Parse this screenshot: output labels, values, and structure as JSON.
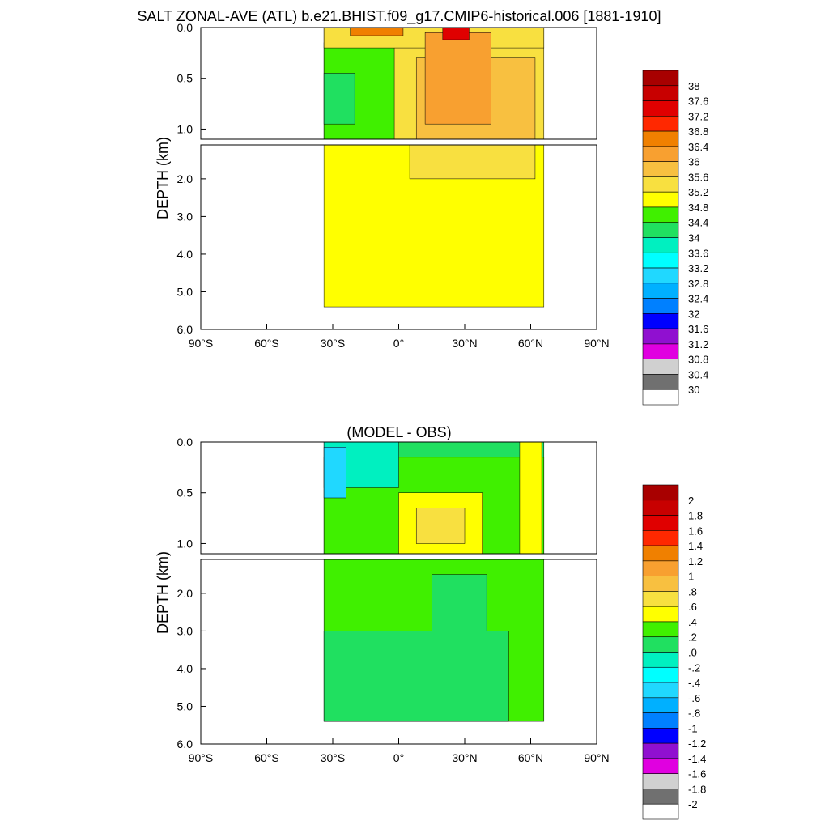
{
  "figure_title": "SALT ZONAL-AVE (ATL) b.e21.BHIST.f09_g17.CMIP6-historical.006 [1881-1910]",
  "chart_data": [
    {
      "type": "heatmap",
      "title": "",
      "ylabel": "DEPTH (km)",
      "xlabel": "",
      "x_ticks": [
        "90°S",
        "60°S",
        "30°S",
        "0°",
        "30°N",
        "60°N",
        "90°N"
      ],
      "x_range": [
        -90,
        90
      ],
      "upper_y_ticks": [
        "0.0",
        "0.5",
        "1.0"
      ],
      "upper_y_range_km": [
        0,
        1.1
      ],
      "lower_y_ticks": [
        "2.0",
        "3.0",
        "4.0",
        "5.0",
        "6.0"
      ],
      "lower_y_range_km": [
        1.1,
        6.0
      ],
      "colorbar_labels": [
        "38",
        "37.6",
        "37.2",
        "36.8",
        "36.4",
        "36",
        "35.6",
        "35.2",
        "34.8",
        "34.4",
        "34",
        "33.6",
        "33.2",
        "32.8",
        "32.4",
        "32",
        "31.6",
        "31.2",
        "30.8",
        "30.4",
        "30"
      ],
      "colorbar_colors": [
        "#a80000",
        "#c80000",
        "#e00000",
        "#ff2800",
        "#f08000",
        "#f8a030",
        "#f8c040",
        "#f8e040",
        "#ffff00",
        "#40f000",
        "#20e060",
        "#00f0c0",
        "#00ffff",
        "#20d8ff",
        "#00b0ff",
        "#0080ff",
        "#0000ff",
        "#9010d0",
        "#e000e0",
        "#d0d0d0",
        "#707070",
        "#ffffff"
      ],
      "regions": {
        "upper": [
          {
            "value": 35.2,
            "lat": [
              -34,
              66
            ],
            "depth": [
              0.0,
              1.1
            ]
          },
          {
            "value": 34.6,
            "lat": [
              -34,
              -2
            ],
            "depth": [
              0.15,
              1.1
            ]
          },
          {
            "value": 34.2,
            "lat": [
              -34,
              -20
            ],
            "depth": [
              0.45,
              0.95
            ]
          },
          {
            "value": 35.4,
            "lat": [
              -34,
              66
            ],
            "depth": [
              0.0,
              0.2
            ]
          },
          {
            "value": 35.6,
            "lat": [
              8,
              62
            ],
            "depth": [
              0.3,
              1.1
            ]
          },
          {
            "value": 36.0,
            "lat": [
              12,
              42
            ],
            "depth": [
              0.05,
              0.95
            ]
          },
          {
            "value": 36.6,
            "lat": [
              -22,
              2
            ],
            "depth": [
              0.0,
              0.08
            ]
          },
          {
            "value": 37.2,
            "lat": [
              20,
              32
            ],
            "depth": [
              0.0,
              0.12
            ]
          }
        ],
        "lower": [
          {
            "value": 35.0,
            "lat": [
              -34,
              66
            ],
            "depth": [
              1.1,
              5.4
            ]
          },
          {
            "value": 35.4,
            "lat": [
              5,
              62
            ],
            "depth": [
              1.1,
              2.0
            ]
          }
        ]
      }
    },
    {
      "type": "heatmap",
      "title": "(MODEL - OBS)",
      "ylabel": "DEPTH (km)",
      "xlabel": "",
      "x_ticks": [
        "90°S",
        "60°S",
        "30°S",
        "0°",
        "30°N",
        "60°N",
        "90°N"
      ],
      "x_range": [
        -90,
        90
      ],
      "upper_y_ticks": [
        "0.0",
        "0.5",
        "1.0"
      ],
      "upper_y_range_km": [
        0,
        1.1
      ],
      "lower_y_ticks": [
        "2.0",
        "3.0",
        "4.0",
        "5.0",
        "6.0"
      ],
      "lower_y_range_km": [
        1.1,
        6.0
      ],
      "colorbar_labels": [
        "2",
        "1.8",
        "1.6",
        "1.4",
        "1.2",
        "1",
        ".8",
        ".6",
        ".4",
        ".2",
        ".0",
        "-.2",
        "-.4",
        "-.6",
        "-.8",
        "-1",
        "-1.2",
        "-1.4",
        "-1.6",
        "-1.8",
        "-2"
      ],
      "colorbar_colors": [
        "#a80000",
        "#c80000",
        "#e00000",
        "#ff2800",
        "#f08000",
        "#f8a030",
        "#f8c040",
        "#f8e040",
        "#ffff00",
        "#40f000",
        "#20e060",
        "#00f0c0",
        "#00ffff",
        "#20d8ff",
        "#00b0ff",
        "#0080ff",
        "#0000ff",
        "#9010d0",
        "#e000e0",
        "#d0d0d0",
        "#707070",
        "#ffffff"
      ],
      "regions": {
        "upper": [
          {
            "value": 0.1,
            "lat": [
              -34,
              66
            ],
            "depth": [
              0.0,
              1.1
            ]
          },
          {
            "value": 0.3,
            "lat": [
              -34,
              66
            ],
            "depth": [
              0.15,
              1.1
            ]
          },
          {
            "value": -0.2,
            "lat": [
              -34,
              0
            ],
            "depth": [
              0.0,
              0.45
            ]
          },
          {
            "value": -0.5,
            "lat": [
              -34,
              -24
            ],
            "depth": [
              0.05,
              0.55
            ]
          },
          {
            "value": 0.5,
            "lat": [
              0,
              38
            ],
            "depth": [
              0.5,
              1.1
            ]
          },
          {
            "value": 0.7,
            "lat": [
              8,
              30
            ],
            "depth": [
              0.65,
              1.0
            ]
          },
          {
            "value": 0.5,
            "lat": [
              55,
              65
            ],
            "depth": [
              0.0,
              1.1
            ]
          }
        ],
        "lower": [
          {
            "value": 0.3,
            "lat": [
              -34,
              66
            ],
            "depth": [
              1.1,
              5.4
            ]
          },
          {
            "value": 0.1,
            "lat": [
              -34,
              50
            ],
            "depth": [
              3.0,
              5.4
            ]
          },
          {
            "value": 0.1,
            "lat": [
              15,
              40
            ],
            "depth": [
              1.5,
              3.0
            ]
          }
        ]
      }
    }
  ]
}
